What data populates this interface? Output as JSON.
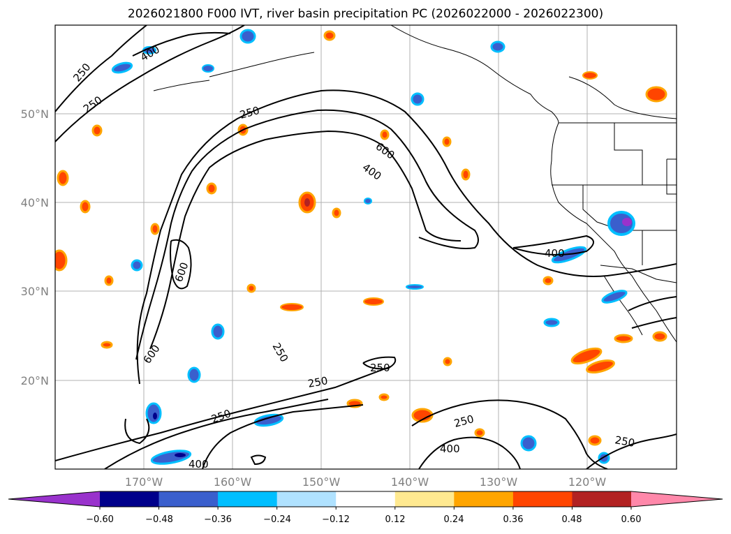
{
  "title": "2026021800 F000 IVT, river basin precipitation PC (2026022000 - 2026022300)",
  "map": {
    "lat_labels": [
      "50°N",
      "40°N",
      "30°N",
      "20°N"
    ],
    "lon_labels": [
      "170°W",
      "160°W",
      "150°W",
      "140°W",
      "130°W",
      "120°W"
    ],
    "ivt_contour_labels": [
      "250",
      "250",
      "400",
      "250",
      "600",
      "400",
      "400",
      "600",
      "600",
      "250",
      "250",
      "250",
      "250",
      "250",
      "400",
      "250",
      "400"
    ]
  },
  "colorbar": {
    "tick_labels": [
      "−0.60",
      "−0.48",
      "−0.36",
      "−0.24",
      "−0.12",
      "0.12",
      "0.24",
      "0.36",
      "0.48",
      "0.60"
    ],
    "colors": [
      "#9932cc",
      "#00008b",
      "#3a5fcd",
      "#00bfff",
      "#b0e2ff",
      "#ffffff",
      "#ffe990",
      "#ffa500",
      "#ff4500",
      "#b22222",
      "#ff88aa"
    ]
  }
}
